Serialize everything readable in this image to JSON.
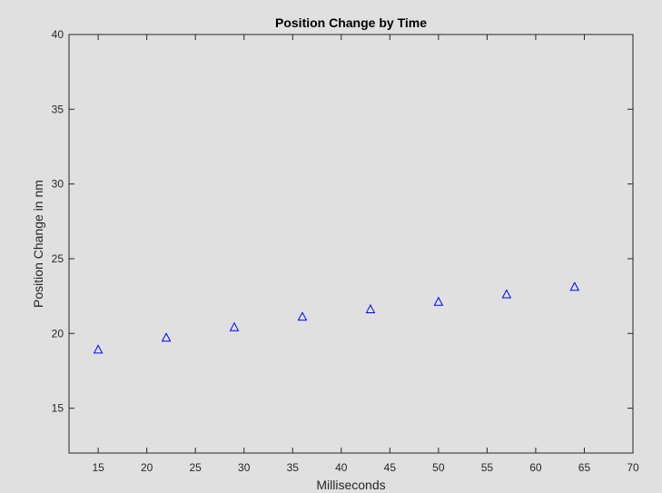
{
  "chart_data": {
    "type": "scatter",
    "title": "Position Change by Time",
    "xlabel": "Milliseconds",
    "ylabel": "Position Change in nm",
    "xlim": [
      12,
      70
    ],
    "ylim": [
      12,
      40
    ],
    "xticks": [
      15,
      20,
      25,
      30,
      35,
      40,
      45,
      50,
      55,
      60,
      65,
      70
    ],
    "yticks": [
      15,
      20,
      25,
      30,
      35,
      40
    ],
    "grid": false,
    "marker": "triangle-open",
    "marker_color": "#0000ff",
    "series": [
      {
        "x": [
          15,
          22,
          29,
          36,
          43,
          50,
          57,
          64
        ],
        "y": [
          18.9,
          19.7,
          20.4,
          21.1,
          21.6,
          22.1,
          22.6,
          23.1
        ]
      }
    ]
  },
  "colors": {
    "figure_bg": "#e0e0e0",
    "axes_bg": "#e0e0e0",
    "axis_line": "#262626",
    "text": "#262626"
  }
}
